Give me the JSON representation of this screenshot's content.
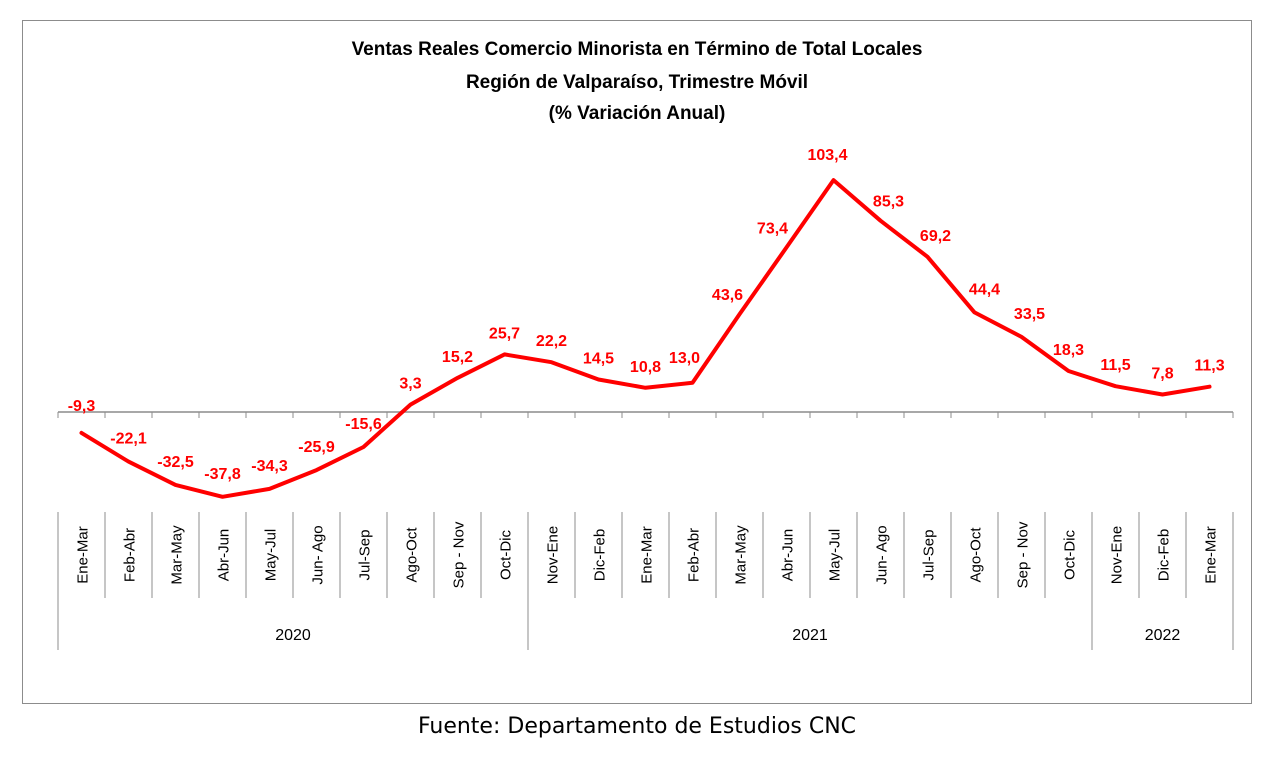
{
  "chart_data": {
    "type": "line",
    "title": [
      "Ventas Reales Comercio Minorista  en Término de Total Locales",
      "Región de Valparaíso, Trimestre Móvil",
      "(% Variación Anual)"
    ],
    "xlabel": "",
    "ylabel": "",
    "categories": [
      "Ene-Mar",
      "Feb-Abr",
      "Mar-May",
      "Abr-Jun",
      "May-Jul",
      "Jun- Ago",
      "Jul-Sep",
      "Ago-Oct",
      "Sep - Nov",
      "Oct-Dic",
      "Nov-Ene",
      "Dic-Feb",
      "Ene-Mar",
      "Feb-Abr",
      "Mar-May",
      "Abr-Jun",
      "May-Jul",
      "Jun- Ago",
      "Jul-Sep",
      "Ago-Oct",
      "Sep - Nov",
      "Oct-Dic",
      "Nov-Ene",
      "Dic-Feb",
      "Ene-Mar"
    ],
    "year_groups": [
      {
        "label": "2020",
        "count": 10
      },
      {
        "label": "2021",
        "count": 12
      },
      {
        "label": "2022",
        "count": 3
      }
    ],
    "series": [
      {
        "values": [
          -9.3,
          -22.1,
          -32.5,
          -37.8,
          -34.3,
          -25.9,
          -15.6,
          3.3,
          15.2,
          25.7,
          22.2,
          14.5,
          10.8,
          13.0,
          43.6,
          73.4,
          103.4,
          85.3,
          69.2,
          44.4,
          33.5,
          18.3,
          11.5,
          7.8,
          11.3
        ],
        "labels": [
          "-9,3",
          "-22,1",
          "-32,5",
          "-37,8",
          "-34,3",
          "-25,9",
          "-15,6",
          "3,3",
          "15,2",
          "25,7",
          "22,2",
          "14,5",
          "10,8",
          "13,0",
          "43,6",
          "73,4",
          "103,4",
          "85,3",
          "69,2",
          "44,4",
          "33,5",
          "18,3",
          "11,5",
          "7,8",
          "11,3"
        ]
      }
    ],
    "grid": false,
    "legend": "none",
    "line_color": "#ff0000",
    "label_color": "#ff0000",
    "axis_color": "#8c8c8c"
  },
  "source_note": "Fuente: Departamento de Estudios CNC"
}
